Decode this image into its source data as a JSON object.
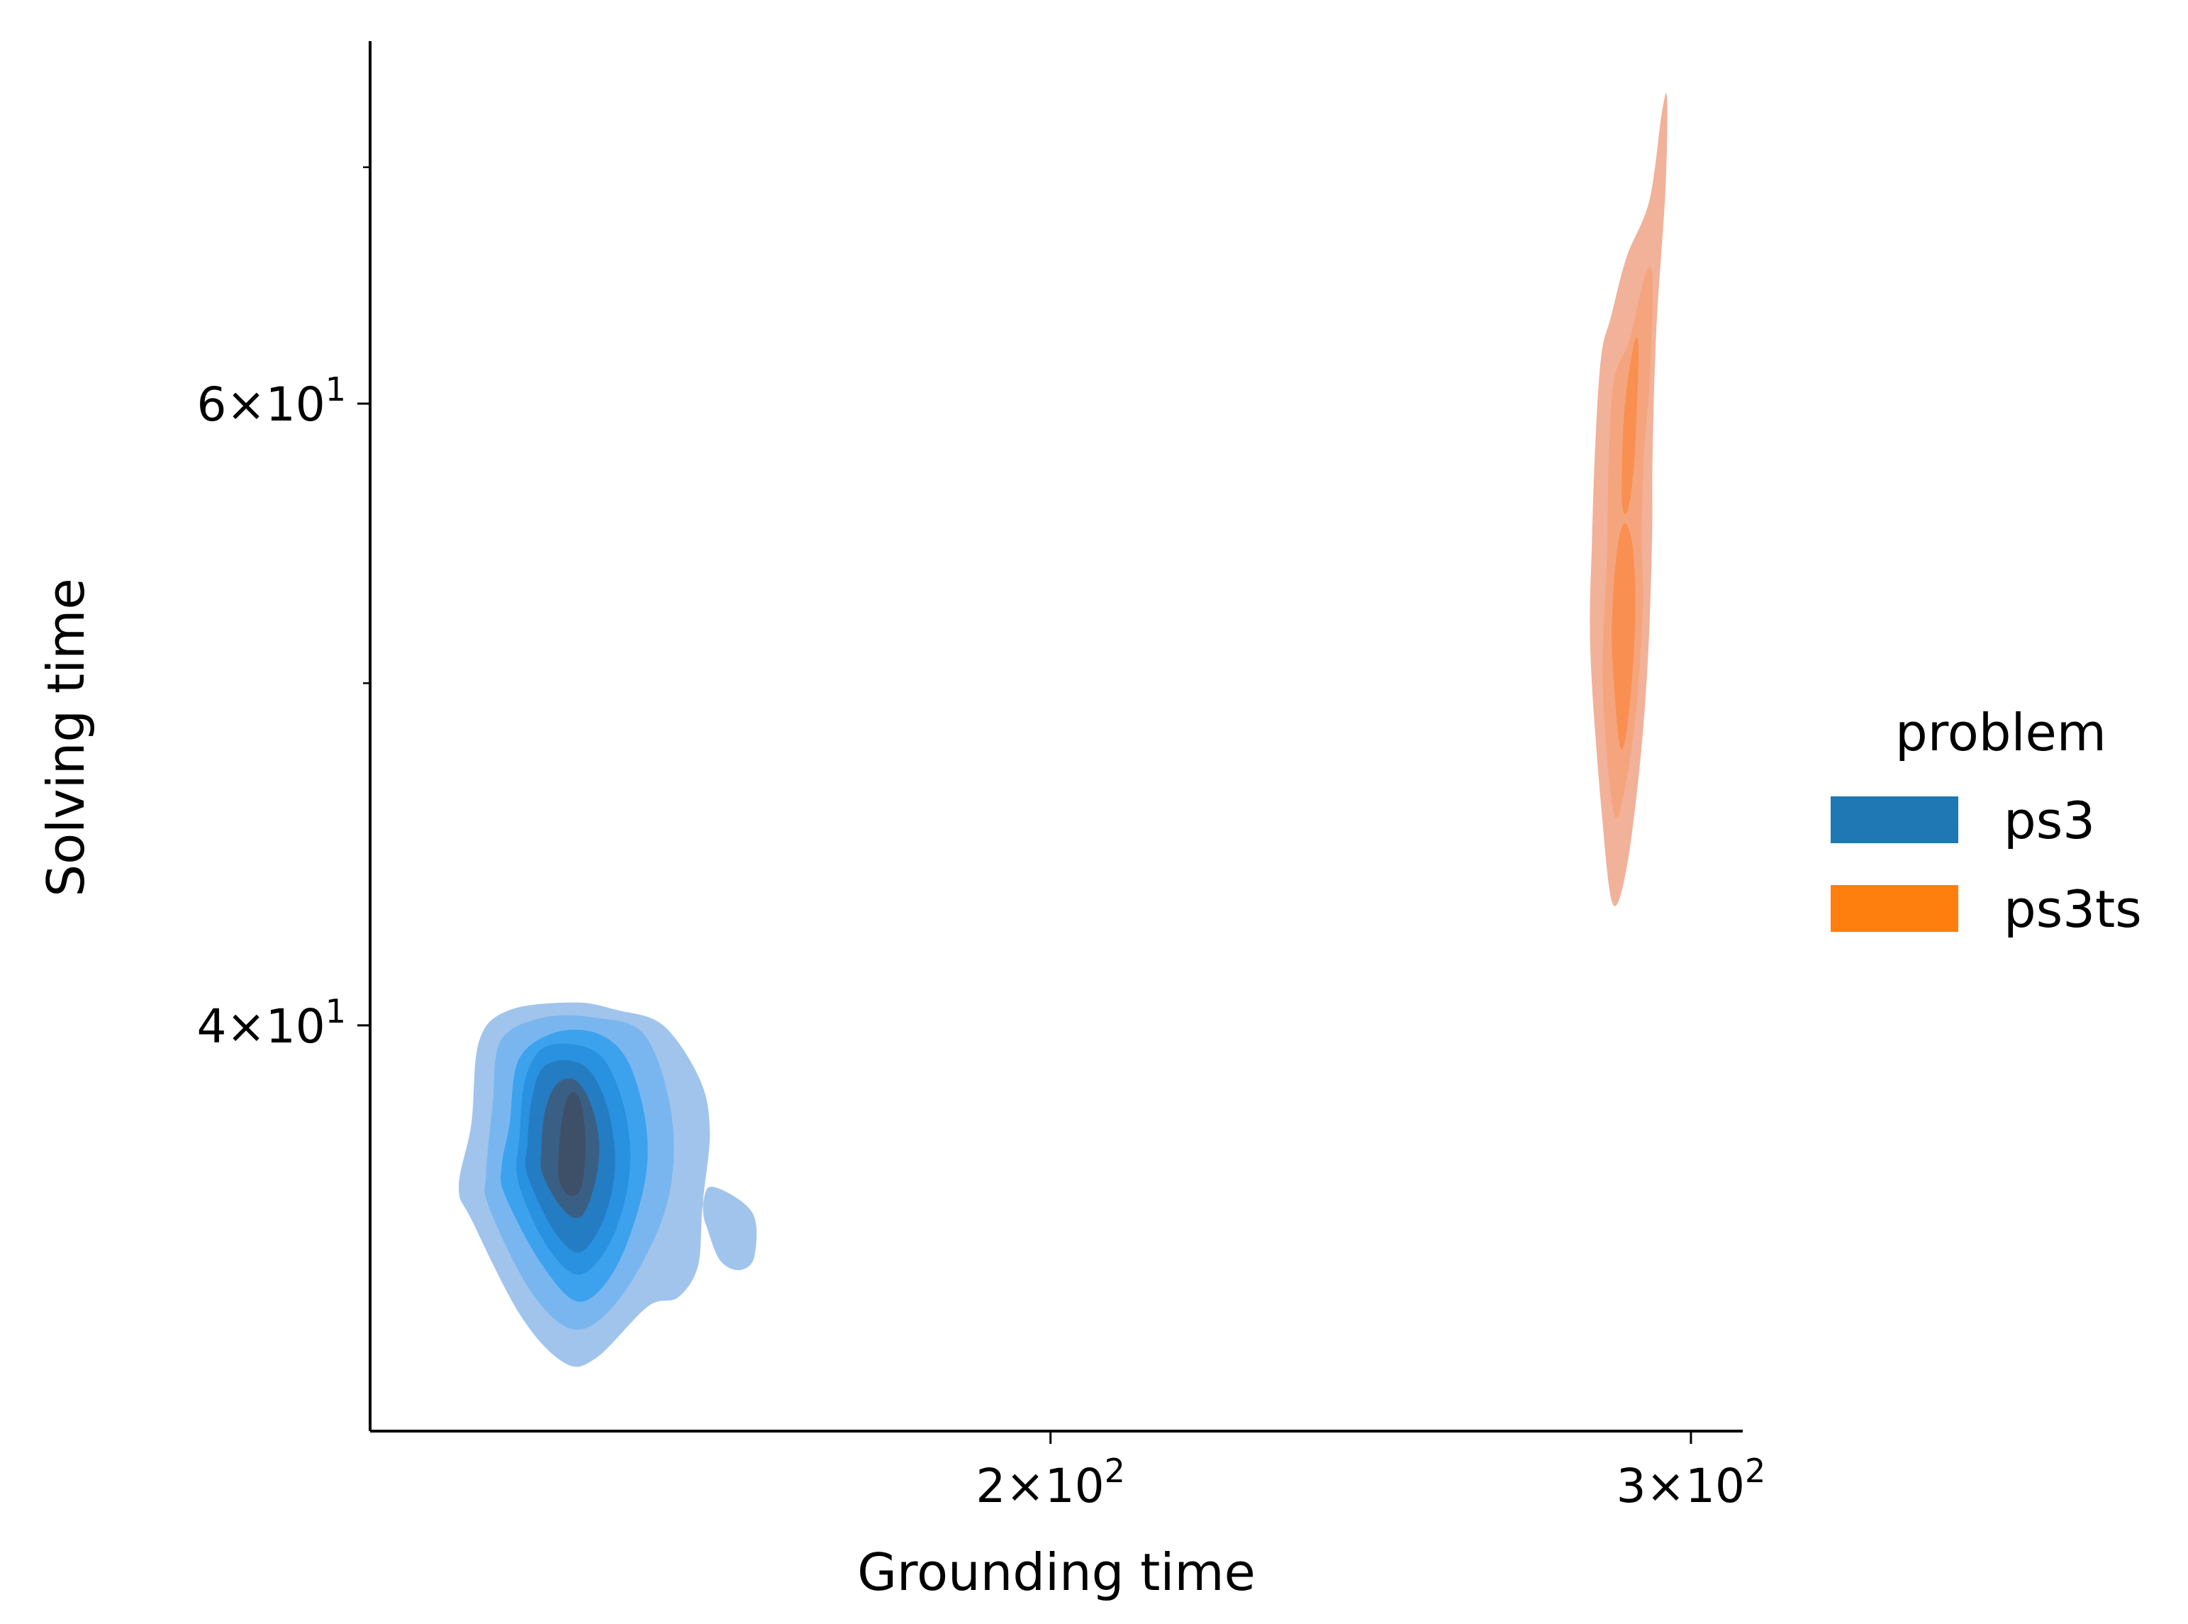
{
  "chart_data": {
    "type": "kde-density (bivariate, filled)",
    "xlabel": "Grounding time",
    "ylabel": "Solving time",
    "xscale": "log",
    "yscale": "log",
    "xlim": [
      130,
      310
    ],
    "ylim": [
      30.7,
      76
    ],
    "x_ticks": [
      {
        "value": 200,
        "base": "2",
        "exp": "2"
      },
      {
        "value": 300,
        "base": "3",
        "exp": "2"
      }
    ],
    "y_ticks": [
      {
        "value": 40,
        "base": "4",
        "exp": "1"
      },
      {
        "value": 60,
        "base": "6",
        "exp": "1"
      }
    ],
    "y_minor_ticks": [
      50,
      70
    ],
    "legend": {
      "title": "problem",
      "placement": "right",
      "entries": [
        {
          "label": "ps3",
          "color": "#1f77b4"
        },
        {
          "label": "ps3ts",
          "color": "#ff7f0e"
        }
      ]
    },
    "series": [
      {
        "name": "ps3",
        "color": "#1f77b4",
        "levels": [
          {
            "fill": "#a1c4ec",
            "outline": [
              [
                138.7,
                35.2
              ],
              [
                143,
                33.1
              ],
              [
                147,
                32.1
              ],
              [
                150,
                32.2
              ],
              [
                155,
                33.3
              ],
              [
                158,
                33.5
              ],
              [
                160,
                34.2
              ],
              [
                160.5,
                35.6
              ],
              [
                161.6,
                36
              ],
              [
                165.6,
                35.4
              ],
              [
                165.8,
                34.4
              ],
              [
                164.3,
                34.1
              ],
              [
                162.3,
                34.3
              ],
              [
                161,
                35
              ],
              [
                160.5,
                35.6
              ],
              [
                161.2,
                37.3
              ],
              [
                160.2,
                38.6
              ],
              [
                156.5,
                40
              ],
              [
                152,
                40.4
              ],
              [
                148,
                40.6
              ],
              [
                142,
                40.4
              ],
              [
                139.3,
                39.6
              ],
              [
                138.6,
                37.5
              ],
              [
                137.5,
                36
              ]
            ]
          },
          {
            "fill": "#79b6f0",
            "outline": [
              [
                140.2,
                35.5
              ],
              [
                144,
                33.6
              ],
              [
                148,
                32.8
              ],
              [
                152,
                33.4
              ],
              [
                156,
                35
              ],
              [
                157.5,
                36.5
              ],
              [
                157,
                38.2
              ],
              [
                154.5,
                39.8
              ],
              [
                150,
                40.2
              ],
              [
                145,
                40.2
              ],
              [
                141.2,
                39.6
              ],
              [
                140.5,
                38
              ],
              [
                139.9,
                36.3
              ]
            ]
          },
          {
            "fill": "#3ca2ee",
            "outline": [
              [
                141.6,
                35.8
              ],
              [
                145,
                34.2
              ],
              [
                148.5,
                33.4
              ],
              [
                152,
                34.2
              ],
              [
                154.6,
                36
              ],
              [
                154.8,
                37.5
              ],
              [
                153,
                39.1
              ],
              [
                150,
                39.8
              ],
              [
                146,
                39.8
              ],
              [
                142.8,
                39.1
              ],
              [
                142,
                37.5
              ],
              [
                141.3,
                36.5
              ]
            ]
          },
          {
            "fill": "#2891e0",
            "outline": [
              [
                142.8,
                36.1
              ],
              [
                145.5,
                34.6
              ],
              [
                148.5,
                34
              ],
              [
                151.5,
                34.8
              ],
              [
                153.2,
                36.3
              ],
              [
                152.8,
                37.8
              ],
              [
                150.8,
                39.1
              ],
              [
                148,
                39.5
              ],
              [
                145,
                39.4
              ],
              [
                143.4,
                38.6
              ],
              [
                142.9,
                37.2
              ]
            ]
          },
          {
            "fill": "#247cc3",
            "outline": [
              [
                143.6,
                36.3
              ],
              [
                146,
                35
              ],
              [
                148.5,
                34.5
              ],
              [
                150.8,
                35.3
              ],
              [
                151.8,
                36.5
              ],
              [
                151.2,
                37.8
              ],
              [
                149.5,
                38.8
              ],
              [
                147.3,
                39.1
              ],
              [
                145,
                38.9
              ],
              [
                144,
                38.1
              ],
              [
                143.6,
                37
              ]
            ]
          },
          {
            "fill": "#3a5f84",
            "outline": [
              [
                145,
                36.3
              ],
              [
                146.8,
                35.5
              ],
              [
                148.5,
                35.3
              ],
              [
                149.8,
                36
              ],
              [
                150.3,
                37
              ],
              [
                149.5,
                38
              ],
              [
                148,
                38.6
              ],
              [
                146.3,
                38.5
              ],
              [
                145.2,
                37.8
              ],
              [
                144.9,
                36.9
              ]
            ]
          },
          {
            "fill": "#3e5068",
            "outline": [
              [
                146.5,
                36.2
              ],
              [
                147.5,
                35.8
              ],
              [
                148.6,
                36
              ],
              [
                149,
                37
              ],
              [
                148.6,
                38
              ],
              [
                147.8,
                38.3
              ],
              [
                147.1,
                38
              ],
              [
                146.6,
                37.2
              ]
            ]
          }
        ]
      },
      {
        "name": "ps3ts",
        "color": "#ff7f0e",
        "levels": [
          {
            "fill": "#f2b199",
            "outline": [
              [
                281.5,
                51
              ],
              [
                283.5,
                46
              ],
              [
                285.5,
                43.3
              ],
              [
                288,
                44.3
              ],
              [
                290.5,
                47.5
              ],
              [
                292,
                51
              ],
              [
                292.7,
                55
              ],
              [
                292.8,
                58
              ],
              [
                293.5,
                63
              ],
              [
                295.2,
                69
              ],
              [
                295.5,
                73.2
              ],
              [
                294.5,
                72.5
              ],
              [
                292.2,
                68.5
              ],
              [
                288,
                66
              ],
              [
                285.2,
                63.5
              ],
              [
                283.5,
                62
              ],
              [
                282.5,
                59
              ],
              [
                281.8,
                55
              ]
            ]
          },
          {
            "fill": "#f5a57d",
            "outline": [
              [
                283.7,
                50
              ],
              [
                285.6,
                46
              ],
              [
                287.5,
                46.5
              ],
              [
                289.7,
                49
              ],
              [
                291,
                52.5
              ],
              [
                290.8,
                55
              ],
              [
                291.2,
                58
              ],
              [
                292.3,
                61
              ],
              [
                292.8,
                65
              ],
              [
                291.5,
                65.3
              ],
              [
                288.5,
                62.5
              ],
              [
                285.8,
                61
              ],
              [
                284.8,
                58
              ],
              [
                284.5,
                54.5
              ]
            ]
          },
          {
            "fill": "#f98f51",
            "outline": [
              [
                285.4,
                51
              ],
              [
                286.8,
                48
              ],
              [
                288.3,
                48.8
              ],
              [
                289.6,
                52
              ],
              [
                289.2,
                54.5
              ],
              [
                287.8,
                55.5
              ],
              [
                286.5,
                54.8
              ],
              [
                285.6,
                53
              ]
            ]
          },
          {
            "fill": "#f98f51",
            "outline": [
              [
                287.2,
                56.2
              ],
              [
                288.3,
                56
              ],
              [
                289.5,
                58
              ],
              [
                290.2,
                62
              ],
              [
                289.5,
                62.5
              ],
              [
                288,
                60.5
              ],
              [
                287.3,
                58.5
              ]
            ]
          }
        ]
      }
    ]
  }
}
